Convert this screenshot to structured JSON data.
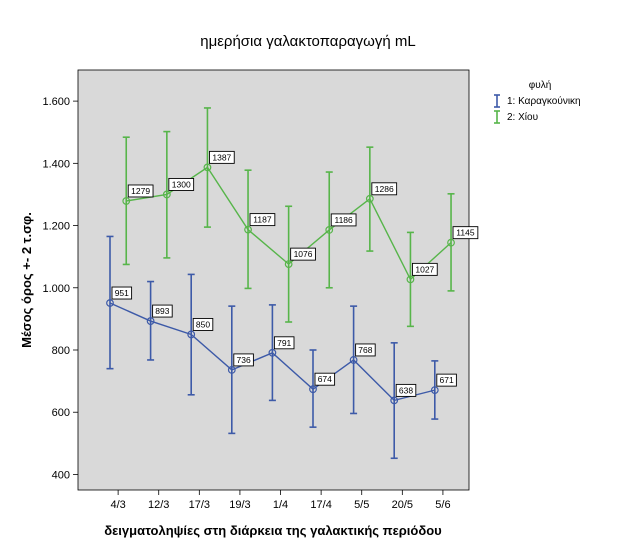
{
  "chart_data": {
    "type": "line",
    "title": "ημερήσια γαλακτοπαραγωγή  mL",
    "xlabel": "δειγματοληψίες στη διάρκεια της γαλακτικής περιόδου",
    "ylabel": "Μέσος όρος +- 2 τ.σφ.",
    "ylim": [
      350,
      1700
    ],
    "yticks": [
      400,
      600,
      800,
      1000,
      1200,
      1400,
      1600
    ],
    "ytick_labels": [
      "400",
      "600",
      "800",
      "1.000",
      "1.200",
      "1.400",
      "1.600"
    ],
    "categories": [
      "4/3",
      "12/3",
      "17/3",
      "19/3",
      "1/4",
      "17/4",
      "5/5",
      "20/5",
      "5/6"
    ],
    "grid": false,
    "legend": {
      "title": "φυλή",
      "position": "right"
    },
    "colors": {
      "plot_bg": "#d9d9d9",
      "series1": "#3d5aa8",
      "series2": "#57b54a"
    },
    "series": [
      {
        "name": "1: Καραγκούνικη",
        "color": "#3d5aa8",
        "marker": "circle",
        "errorbar": "+- 2 SE",
        "x_index": [
          0,
          1,
          2,
          3,
          4,
          5,
          6,
          7,
          8
        ],
        "values": [
          951,
          893,
          850,
          736,
          791,
          674,
          768,
          638,
          671
        ],
        "labels": [
          "951",
          "893",
          "850",
          "736",
          "791",
          "674",
          "768",
          "638",
          "671"
        ],
        "lower": [
          740,
          768,
          656,
          532,
          638,
          552,
          596,
          452,
          578
        ],
        "upper": [
          1165,
          1020,
          1043,
          941,
          945,
          800,
          941,
          823,
          765
        ]
      },
      {
        "name": "2: Χίου",
        "color": "#57b54a",
        "marker": "circle",
        "errorbar": "+- 2 SE",
        "x_index": [
          0.4,
          1.4,
          2.4,
          3.4,
          4.4,
          5.4,
          6.4,
          7.4,
          8.4
        ],
        "values": [
          1279,
          1300,
          1387,
          1187,
          1076,
          1186,
          1286,
          1027,
          1145
        ],
        "labels": [
          "1279",
          "1300",
          "1387",
          "1187",
          "1076",
          "1186",
          "1286",
          "1027",
          "1145"
        ],
        "lower": [
          1075,
          1096,
          1195,
          998,
          890,
          1000,
          1118,
          876,
          990
        ],
        "upper": [
          1484,
          1502,
          1578,
          1378,
          1262,
          1372,
          1452,
          1178,
          1302
        ]
      }
    ]
  }
}
